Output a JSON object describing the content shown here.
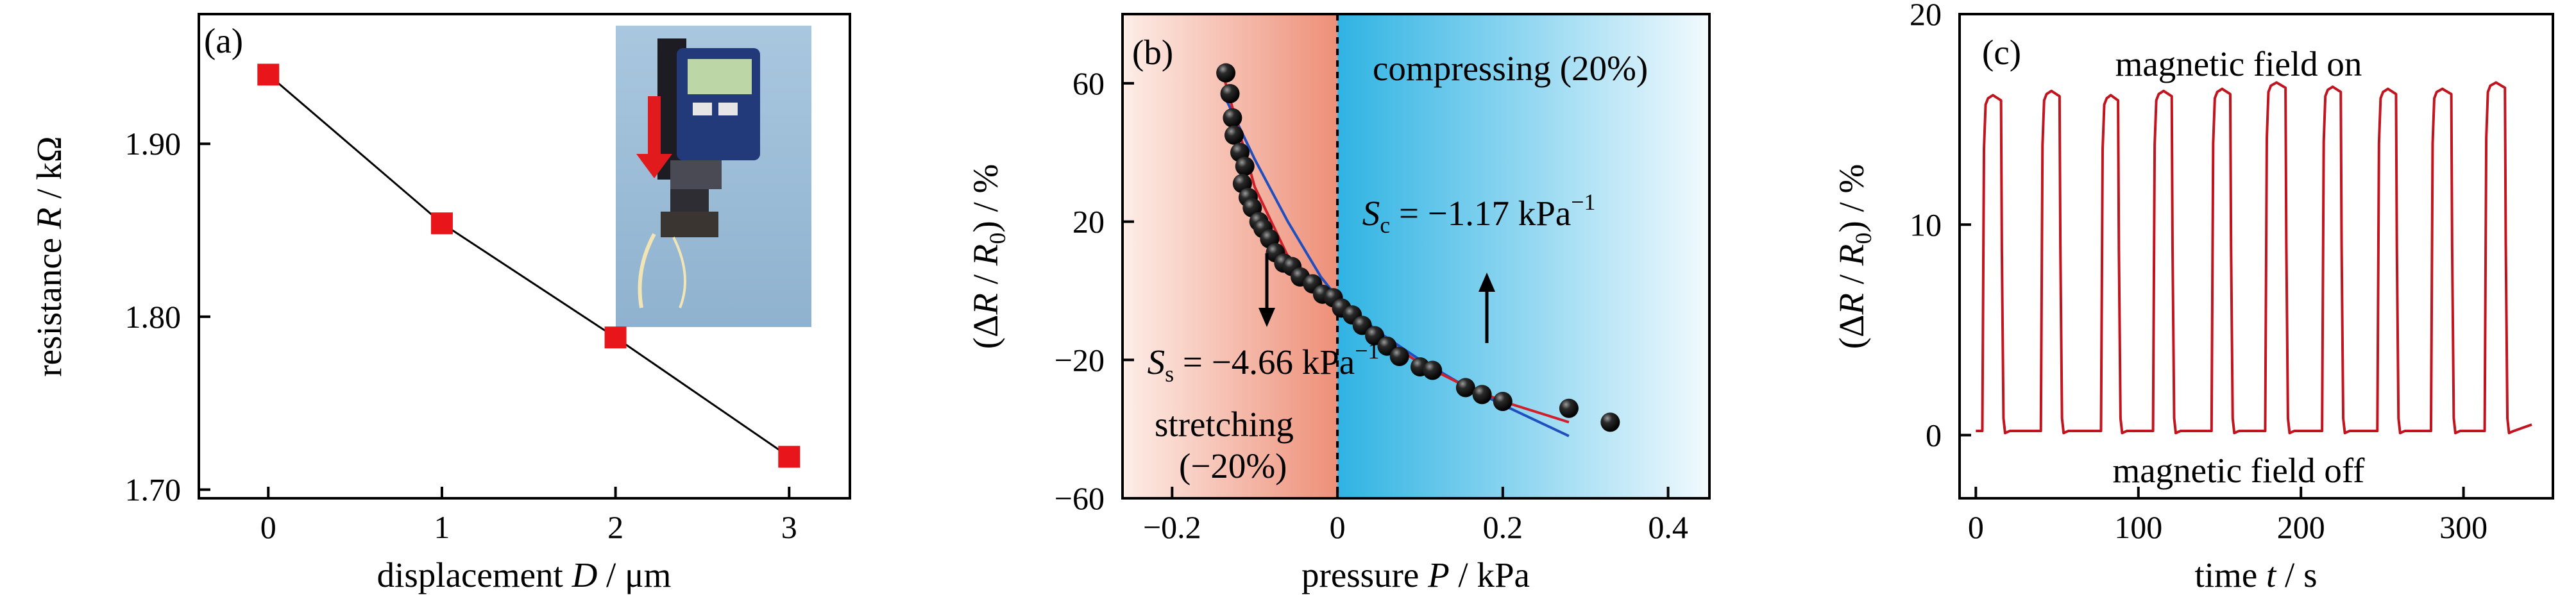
{
  "chart_data": [
    {
      "type": "line",
      "panel_label": "(a)",
      "xlabel_prefix": "displacement ",
      "xlabel_var": "D",
      "xlabel_suffix": " / μm",
      "ylabel_prefix": "resistance ",
      "ylabel_var": "R",
      "ylabel_suffix": " / kΩ",
      "xlim": [
        -0.4,
        3.35
      ],
      "ylim": [
        1.695,
        1.975
      ],
      "xticks": [
        0,
        1,
        2,
        3
      ],
      "xtick_labels": [
        "0",
        "1",
        "2",
        "3"
      ],
      "yticks": [
        1.7,
        1.8,
        1.9
      ],
      "ytick_labels": [
        "1.70",
        "1.80",
        "1.90"
      ],
      "x": [
        0,
        1,
        2,
        3
      ],
      "y": [
        1.94,
        1.854,
        1.788,
        1.719
      ],
      "marker": "square",
      "marker_color": "#e8151b",
      "line_color": "#000000",
      "inset": "photo of micrometer pressing a sensor, red arrow pointing down",
      "grid": false,
      "legend": "none"
    },
    {
      "type": "scatter",
      "panel_label": "(b)",
      "xlabel_prefix": "pressure ",
      "xlabel_var": "P",
      "xlabel_suffix": " / kPa",
      "ylabel": "(ΔR / R0) / %",
      "xlim": [
        -0.26,
        0.45
      ],
      "ylim": [
        -60,
        80
      ],
      "xticks": [
        -0.2,
        0,
        0.2,
        0.4
      ],
      "xtick_labels": [
        "−0.2",
        "0",
        "0.2",
        "0.4"
      ],
      "yticks": [
        -60,
        -20,
        20,
        60
      ],
      "ytick_labels": [
        "−60",
        "−20",
        "20",
        "60"
      ],
      "regions": [
        {
          "label_line1": "stretching",
          "label_line2": "(−20%)",
          "x_range": [
            -0.26,
            0
          ],
          "color": "#f2a08a"
        },
        {
          "label_line1": "compressing (20%)",
          "x_range": [
            0,
            0.45
          ],
          "color": "#36b9e6"
        }
      ],
      "points": [
        {
          "x": -0.135,
          "y": 63
        },
        {
          "x": -0.13,
          "y": 57
        },
        {
          "x": -0.127,
          "y": 50
        },
        {
          "x": -0.125,
          "y": 45
        },
        {
          "x": -0.118,
          "y": 40
        },
        {
          "x": -0.112,
          "y": 36
        },
        {
          "x": -0.115,
          "y": 31
        },
        {
          "x": -0.108,
          "y": 27
        },
        {
          "x": -0.103,
          "y": 24
        },
        {
          "x": -0.095,
          "y": 20
        },
        {
          "x": -0.09,
          "y": 18
        },
        {
          "x": -0.082,
          "y": 15
        },
        {
          "x": -0.075,
          "y": 11
        },
        {
          "x": -0.065,
          "y": 8
        },
        {
          "x": -0.055,
          "y": 7
        },
        {
          "x": -0.045,
          "y": 4
        },
        {
          "x": -0.03,
          "y": 2
        },
        {
          "x": -0.018,
          "y": -1
        },
        {
          "x": -0.005,
          "y": -2
        },
        {
          "x": 0.005,
          "y": -5
        },
        {
          "x": 0.018,
          "y": -7
        },
        {
          "x": 0.03,
          "y": -10
        },
        {
          "x": 0.045,
          "y": -13
        },
        {
          "x": 0.06,
          "y": -16
        },
        {
          "x": 0.075,
          "y": -19
        },
        {
          "x": 0.1,
          "y": -22
        },
        {
          "x": 0.115,
          "y": -23
        },
        {
          "x": 0.155,
          "y": -28
        },
        {
          "x": 0.175,
          "y": -30
        },
        {
          "x": 0.2,
          "y": -32
        },
        {
          "x": 0.28,
          "y": -34
        },
        {
          "x": 0.33,
          "y": -38
        }
      ],
      "fit_red": {
        "x": [
          -0.14,
          -0.1,
          -0.06,
          -0.02,
          0.0,
          0.05,
          0.1,
          0.15,
          0.2,
          0.28
        ],
        "y": [
          64,
          30,
          10,
          0,
          -4,
          -13,
          -21,
          -27,
          -32,
          -38
        ]
      },
      "fit_blue": {
        "x": [
          -0.14,
          -0.1,
          -0.06,
          -0.02,
          0.0,
          0.05,
          0.1,
          0.15,
          0.2,
          0.28
        ],
        "y": [
          58,
          38,
          20,
          4,
          -2,
          -12,
          -20,
          -27,
          -33,
          -42
        ]
      },
      "dashed_vline_x": 0,
      "annotations": [
        {
          "prefix": "S",
          "sub": "s",
          "text": " = −4.66 kPa",
          "sup": "−1",
          "x": -0.23,
          "y": -24
        },
        {
          "prefix": "S",
          "sub": "c",
          "text": " = −1.17 kPa",
          "sup": "−1",
          "x": 0.03,
          "y": 19
        }
      ],
      "grid": false,
      "legend": "none"
    },
    {
      "type": "line",
      "panel_label": "(c)",
      "xlabel_prefix": "time ",
      "xlabel_var": "t",
      "xlabel_suffix": " / s",
      "ylabel": "(ΔR / R0) / %",
      "xlim": [
        -10,
        355
      ],
      "ylim": [
        -3,
        20
      ],
      "xticks": [
        0,
        100,
        200,
        300
      ],
      "xtick_labels": [
        "0",
        "100",
        "200",
        "300"
      ],
      "yticks": [
        0,
        10,
        20
      ],
      "ytick_labels": [
        "0",
        "10",
        "20"
      ],
      "label_on": "magnetic field on",
      "label_off": "magnetic field off",
      "series": [
        {
          "color": "#c0141e",
          "pulses": [
            {
              "on": 5,
              "off": 16,
              "high": 16.0
            },
            {
              "on": 41,
              "off": 52,
              "high": 16.2
            },
            {
              "on": 78,
              "off": 88,
              "high": 16.0
            },
            {
              "on": 110,
              "off": 121,
              "high": 16.2
            },
            {
              "on": 146,
              "off": 157,
              "high": 16.3
            },
            {
              "on": 179,
              "off": 191,
              "high": 16.6
            },
            {
              "on": 214,
              "off": 225,
              "high": 16.4
            },
            {
              "on": 248,
              "off": 259,
              "high": 16.3
            },
            {
              "on": 281,
              "off": 293,
              "high": 16.3
            },
            {
              "on": 314,
              "off": 326,
              "high": 16.6
            }
          ],
          "baseline": 0.2,
          "t_end": 342
        }
      ],
      "grid": false,
      "legend": "none"
    }
  ]
}
